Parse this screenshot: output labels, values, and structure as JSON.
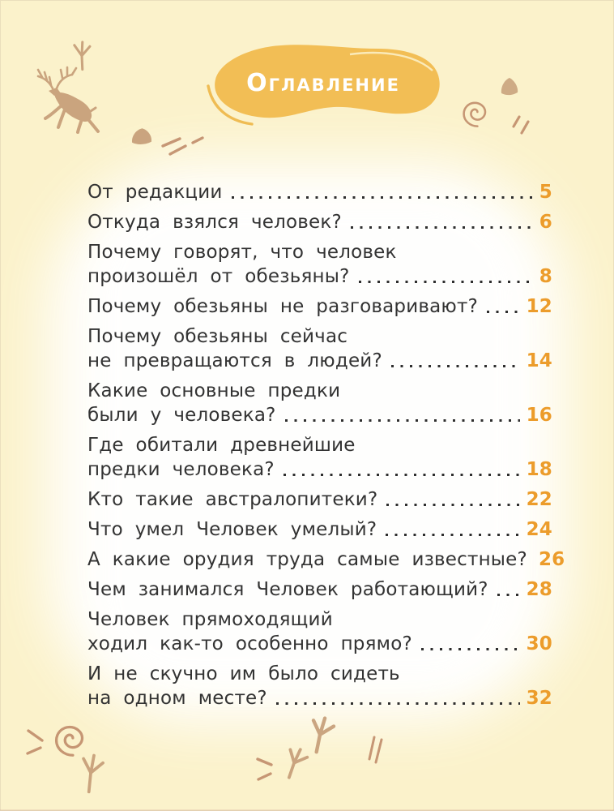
{
  "header": {
    "title": "Оглавление"
  },
  "toc": {
    "entries": [
      {
        "lines": [
          "От редакции"
        ],
        "page": "5"
      },
      {
        "lines": [
          "Откуда взялся человек?"
        ],
        "page": "6"
      },
      {
        "lines": [
          "Почему говорят, что человек",
          "произошёл от обезьяны?"
        ],
        "page": "8"
      },
      {
        "lines": [
          "Почему обезьяны не разговаривают?"
        ],
        "page": "12"
      },
      {
        "lines": [
          "Почему обезьяны сейчас",
          "не превращаются в людей?"
        ],
        "page": "14"
      },
      {
        "lines": [
          "Какие основные предки",
          "были у человека?"
        ],
        "page": "16"
      },
      {
        "lines": [
          "Где обитали древнейшие",
          "предки человека?"
        ],
        "page": "18"
      },
      {
        "lines": [
          "Кто такие австралопитеки?"
        ],
        "page": "22"
      },
      {
        "lines": [
          "Что умел Человек умелый?"
        ],
        "page": "24"
      },
      {
        "lines": [
          "А какие орудия труда самые известные?"
        ],
        "page": "26"
      },
      {
        "lines": [
          "Чем занимался Человек работающий?"
        ],
        "page": "28"
      },
      {
        "lines": [
          "Человек прямоходящий",
          "ходил как-то особенно прямо?"
        ],
        "page": "30"
      },
      {
        "lines": [
          "И не скучно им было сидеть",
          "на одном месте?"
        ],
        "page": "32"
      }
    ]
  },
  "decorations": {
    "items": [
      "deer-cave-drawing",
      "bird-track",
      "rock-mound",
      "slash-strokes",
      "title-blob",
      "blob-swoosh",
      "spiral",
      "small-rock",
      "double-dash"
    ]
  },
  "colors": {
    "background": "#fbf2cb",
    "blob": "#f2be55",
    "accent_page_number": "#ec9c2b",
    "text": "#333333",
    "cave_art": "#c49a74",
    "spiral_art": "#bf8a68",
    "title_text": "#ffffff"
  }
}
